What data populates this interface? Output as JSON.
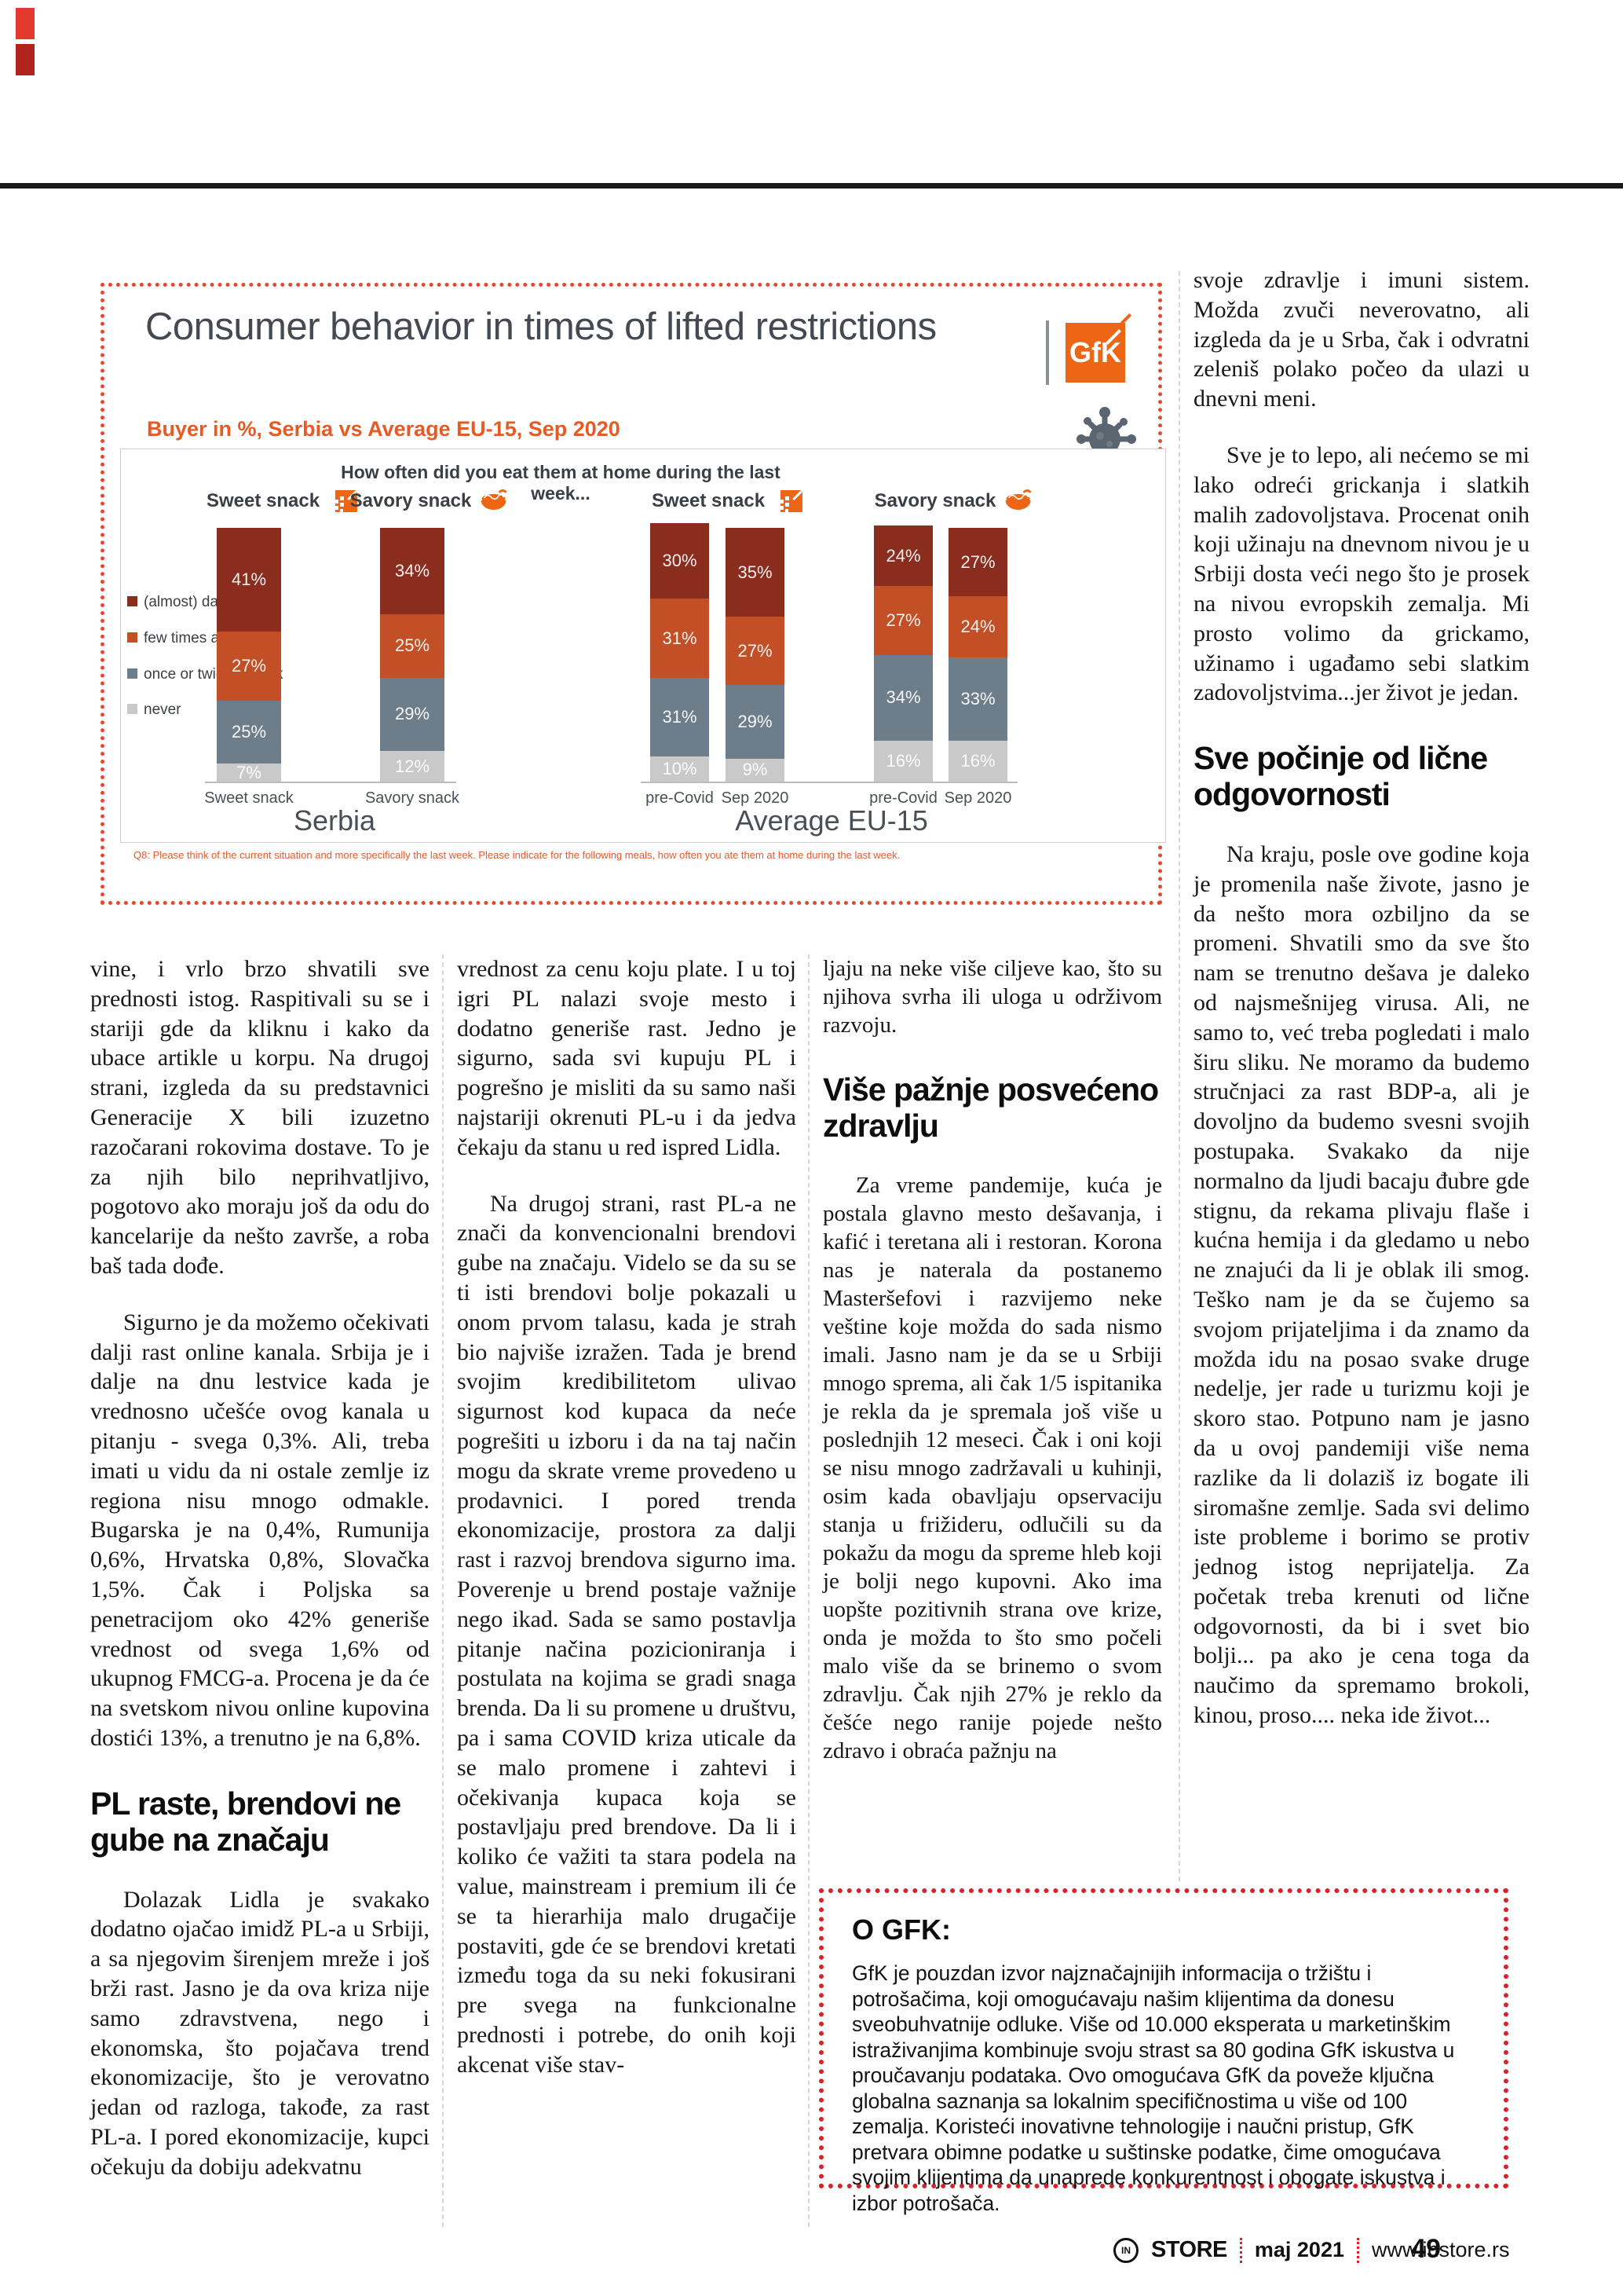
{
  "chart": {
    "title": "Consumer behavior in times of lifted restrictions",
    "subtitle": "Buyer in %, Serbia vs Average EU-15, Sep 2020",
    "logo_text": "GfK",
    "question": "How often did you eat them at home during the last week...",
    "footnote": "Q8: Please think of the current situation and more specifically the last week. Please indicate for the following meals, how often you ate them at home during the last week.",
    "icons": [
      "gfk-logo",
      "virus-icon",
      "sweet-snack-icon",
      "savory-snack-icon"
    ]
  },
  "chart_data": {
    "type": "bar",
    "stacked": true,
    "unit": "percent",
    "title": "Consumer behavior in times of lifted restrictions",
    "subtitle": "Buyer in %, Serbia vs Average EU-15, Sep 2020",
    "legend": [
      "(almost) daily",
      "few times a week",
      "once or twice a week",
      "never"
    ],
    "legend_colors": [
      "#8a2c1e",
      "#c34f27",
      "#6d7e8a",
      "#c9c9c9"
    ],
    "legend_position": "left",
    "groups": [
      {
        "name": "Serbia",
        "sections": [
          {
            "label": "Sweet snack",
            "icon": "sweet-snack-icon",
            "bars": [
              {
                "tick": "Sweet snack",
                "values": [
                  41,
                  27,
                  25,
                  7
                ]
              }
            ]
          },
          {
            "label": "Savory snack",
            "icon": "savory-snack-icon",
            "bars": [
              {
                "tick": "Savory snack",
                "values": [
                  34,
                  25,
                  29,
                  12
                ]
              }
            ]
          }
        ]
      },
      {
        "name": "Average EU-15",
        "sections": [
          {
            "label": "Sweet snack",
            "icon": "sweet-snack-icon",
            "bars": [
              {
                "tick": "pre-Covid",
                "values": [
                  30,
                  31,
                  31,
                  10
                ]
              },
              {
                "tick": "Sep 2020",
                "values": [
                  35,
                  27,
                  29,
                  9
                ]
              }
            ]
          },
          {
            "label": "Savory snack",
            "icon": "savory-snack-icon",
            "bars": [
              {
                "tick": "pre-Covid",
                "values": [
                  24,
                  27,
                  34,
                  16
                ]
              },
              {
                "tick": "Sep 2020",
                "values": [
                  27,
                  24,
                  33,
                  16
                ]
              }
            ]
          }
        ]
      }
    ]
  },
  "articles": {
    "columns": [
      {
        "blocks": [
          {
            "type": "p",
            "indent": false,
            "text": "vine, i vrlo brzo shvatili sve prednosti istog. Raspitivali su se i stariji gde da kliknu i kako da ubace artikle u korpu. Na drugoj strani, izgleda da su predstavnici Generacije X bili izuzetno razočarani rokovima dostave. To je za njih bilo neprihvatljivo, pogotovo ako moraju još da odu do kancelarije da nešto završe, a roba baš tada dođe."
          },
          {
            "type": "p",
            "indent": true,
            "text": "Sigurno je da možemo očekivati dalji rast online kanala. Srbija je i dalje na dnu lestvice kada je vrednosno učešće ovog kanala u pitanju - svega 0,3%. Ali, treba imati u vidu da ni ostale zemlje iz regiona nisu mnogo odmakle. Bugarska je na 0,4%, Rumunija 0,6%, Hrvatska 0,8%, Slovačka 1,5%. Čak i Poljska sa penetracijom oko 42% generiše vrednost od svega 1,6% od ukupnog FMCG-a. Procena je da će na svetskom nivou online kupovina dostići 13%, a trenutno je na 6,8%."
          },
          {
            "type": "h",
            "text": "PL raste, brendovi ne gube na značaju"
          },
          {
            "type": "p",
            "indent": true,
            "text": "Dolazak Lidla je svakako dodatno ojačao imidž PL-a u Srbiji, a sa njegovim širenjem mreže i još brži rast. Jasno je da ova kriza nije samo zdravstvena, nego i ekonomska, što pojačava trend ekonomizacije, što je verovatno jedan od razloga, takođe, za rast PL-a. I pored ekonomizacije, kupci očekuju da dobiju adekvatnu"
          }
        ]
      },
      {
        "blocks": [
          {
            "type": "p",
            "indent": false,
            "text": "vrednost za cenu koju plate. I u toj igri PL nalazi svoje mesto i dodatno generiše rast. Jedno je sigurno, sada svi kupuju PL i pogrešno je misliti da su samo naši najstariji okrenuti PL-u i da jedva čekaju da stanu u red ispred Lidla."
          },
          {
            "type": "p",
            "indent": true,
            "text": "Na drugoj strani, rast PL-a ne znači da konvencionalni brendovi gube na značaju. Videlo se da su se ti isti brendovi bolje pokazali u onom prvom talasu, kada je strah bio najviše izražen. Tada je brend svojim kredibilitetom ulivao sigurnost kod kupaca da neće pogrešiti u izboru i da na taj način mogu da skrate vreme provedeno u prodavnici. I pored trenda ekonomizacije, prostora za dalji rast i razvoj brendova sigurno ima. Poverenje u brend postaje važnije nego ikad. Sada se samo postavlja pitanje načina pozicioniranja i postulata na kojima se gradi snaga brenda. Da li su promene u društvu, pa i sama COVID kriza uticale da se malo promene i zahtevi i očekivanja kupaca koja se postavljaju pred brendove. Da li i koliko će važiti ta stara podela na value, mainstream i premium ili će se ta hierarhija malo drugačije postaviti, gde će se brendovi kretati između toga da su neki fokusirani pre svega na funkcionalne prednosti i potrebe, do onih koji akcenat više stav-"
          }
        ]
      },
      {
        "blocks": [
          {
            "type": "p",
            "indent": false,
            "text": "ljaju na neke više ciljeve kao, što su njihova svrha ili uloga u održivom razvoju."
          },
          {
            "type": "h",
            "text": "Više pažnje posvećeno zdravlju"
          },
          {
            "type": "p",
            "indent": true,
            "text": "Za vreme pandemije, kuća je postala glavno mesto dešavanja, i kafić i teretana ali i restoran. Korona nas je naterala da postanemo Masteršefovi i razvijemo neke veštine koje možda do sada nismo imali. Jasno nam je da se u Srbiji mnogo sprema, ali čak 1/5 ispitanika je rekla da je spremala još više u poslednjih 12 meseci. Čak i oni koji se nisu mnogo zadržavali u kuhinji, osim kada obavljaju opservaciju stanja u frižideru, odlučili su da pokažu da mogu da spreme hleb koji je bolji nego kupovni. Ako ima uopšte pozitivnih strana ove krize, onda je možda to što smo počeli malo više da se brinemo o svom zdravlju. Čak njih 27% je reklo da češće nego ranije pojede nešto zdravo i obraća pažnju na"
          }
        ]
      },
      {
        "blocks": [
          {
            "type": "p",
            "indent": false,
            "text": "svoje zdravlje i imuni sistem. Možda zvuči neverovatno, ali izgleda da je u Srba, čak i odvratni zeleniš polako počeo da ulazi u dnevni meni."
          },
          {
            "type": "p",
            "indent": true,
            "text": "Sve je to lepo, ali nećemo se mi lako odreći grickanja i slatkih malih zadovoljstava. Procenat onih koji užinaju na dnevnom nivou je u Srbiji dosta veći nego što je prosek na nivou evropskih zemalja. Mi prosto volimo da grickamo, užinamo i ugađamo sebi slatkim zadovoljstvima...jer život je jedan."
          },
          {
            "type": "h",
            "text": "Sve počinje od lične odgovornosti"
          },
          {
            "type": "p",
            "indent": true,
            "text": "Na kraju, posle ove godine koja je promenila naše živote, jasno je da nešto mora ozbiljno da se promeni. Shvatili smo da sve što nam se trenutno dešava je daleko od najsmešnijeg virusa. Ali, ne samo to, već treba pogledati i malo širu sliku. Ne moramo da budemo stručnjaci za rast BDP-a, ali je dovoljno da budemo svesni svojih postupaka. Svakako da nije normalno da ljudi bacaju đubre gde stignu, da rekama plivaju flaše i kućna hemija i da gledamo u nebo ne znajući da li je oblak ili smog. Teško nam je da se čujemo sa svojom prijateljima i da znamo da možda idu na posao svake druge nedelje, jer rade u turizmu koji je skoro stao. Potpuno nam je jasno da u ovoj pandemiji više nema razlike da li dolaziš iz bogate ili siromašne zemlje. Sada svi delimo iste probleme i borimo se protiv jednog istog neprijatelja. Za početak treba krenuti od lične odgovornosti, da bi i svet bio bolji... pa ako je cena toga da naučimo da spremamo brokoli, kinou, proso.... neka ide život..."
          }
        ]
      }
    ]
  },
  "about_box": {
    "title": "O GFK:",
    "body": "GfK je pouzdan izvor najznačajnijih informacija o tržištu i potrošačima, koji omogućavaju našim klijentima da donesu sveobuhvatnije odluke. Više od 10.000 eksperata u marketinškim istraživanjima kombinuje svoju strast sa 80 godina GfK iskustva u proučavanju podataka. Ovo omogućava GfK da poveže ključna globalna saznanja sa lokalnim specifičnostima u više od 100 zemalja. Koristeći inovativne tehnologije i naučni pristup, GfK pretvara obimne podatke u suštinske podatke, čime omogućava svojim klijentima da unaprede konkurentnost i obogate iskustva i izbor potrošača."
  },
  "footer": {
    "brand_circle": "IN",
    "brand": "STORE",
    "issue": "maj 2021",
    "website": "www.instore.rs",
    "page_number": "49"
  },
  "colors": {
    "accent_orange": "#e65a24",
    "gfk_orange": "#ec6616",
    "dotted_chart_border": "#e2492f",
    "dotted_box_border": "#d8222a",
    "bar_daily": "#8a2c1e",
    "bar_few_times": "#c34f27",
    "bar_once_twice": "#6d7e8a",
    "bar_never": "#c9c9c9",
    "title_gray": "#454a52"
  }
}
